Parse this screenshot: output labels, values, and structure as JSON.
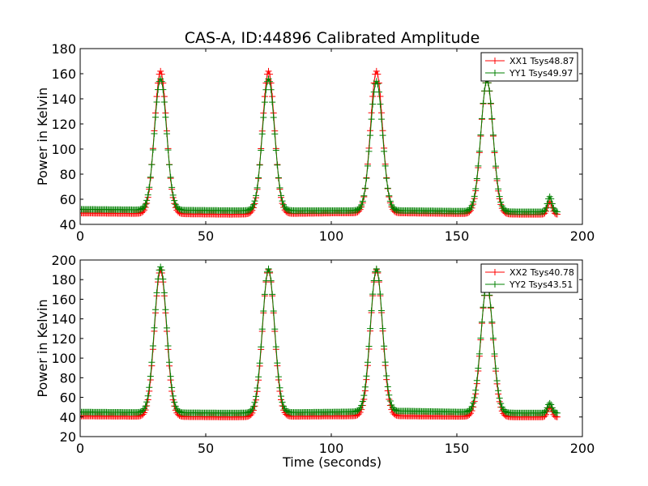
{
  "figure": {
    "title": "CAS-A, ID:44896 Calibrated Amplitude",
    "xlabel": "Time (seconds)",
    "ylabel": "Power in Kelvin",
    "colors": {
      "XX": "#ff0000",
      "YY": "#008000"
    }
  },
  "chart_data": [
    {
      "type": "line",
      "title": "CAS-A, ID:44896 Calibrated Amplitude",
      "xlabel": "",
      "ylabel": "Power in Kelvin",
      "xlim": [
        0,
        200
      ],
      "ylim": [
        40,
        180
      ],
      "xticks": [
        0,
        50,
        100,
        150,
        200
      ],
      "yticks": [
        40,
        60,
        80,
        100,
        120,
        140,
        160,
        180
      ],
      "legend_position": "top-right",
      "marker": "plus",
      "x_range": [
        0,
        190
      ],
      "series": [
        {
          "name": "XX1 Tsys48.87",
          "color": "#ff0000",
          "baselines": [
            [
              0,
              49
            ],
            [
              60,
              48
            ],
            [
              100,
              49
            ],
            [
              130,
              49
            ],
            [
              175,
              48
            ],
            [
              190,
              48
            ]
          ],
          "peaks": [
            {
              "center": 32,
              "height": 162,
              "width": 2.4
            },
            {
              "center": 75,
              "height": 162,
              "width": 2.4
            },
            {
              "center": 118,
              "height": 162,
              "width": 2.4
            },
            {
              "center": 162,
              "height": 155,
              "width": 2.4
            },
            {
              "center": 187,
              "height": 58,
              "width": 0.9
            }
          ]
        },
        {
          "name": "YY1 Tsys49.97",
          "color": "#008000",
          "baselines": [
            [
              0,
              52
            ],
            [
              60,
              51
            ],
            [
              100,
              51
            ],
            [
              130,
              51
            ],
            [
              175,
              50
            ],
            [
              190,
              50
            ]
          ],
          "peaks": [
            {
              "center": 32,
              "height": 156,
              "width": 2.4
            },
            {
              "center": 75,
              "height": 156,
              "width": 2.4
            },
            {
              "center": 118,
              "height": 154,
              "width": 2.4
            },
            {
              "center": 162,
              "height": 155,
              "width": 2.4
            },
            {
              "center": 187,
              "height": 62,
              "width": 0.9
            }
          ]
        }
      ]
    },
    {
      "type": "line",
      "title": "",
      "xlabel": "Time (seconds)",
      "ylabel": "Power in Kelvin",
      "xlim": [
        0,
        200
      ],
      "ylim": [
        20,
        200
      ],
      "xticks": [
        0,
        50,
        100,
        150,
        200
      ],
      "yticks": [
        20,
        40,
        60,
        80,
        100,
        120,
        140,
        160,
        180,
        200
      ],
      "legend_position": "top-right",
      "marker": "plus",
      "x_range": [
        0,
        190
      ],
      "series": [
        {
          "name": "XX2 Tsys40.78",
          "color": "#ff0000",
          "baselines": [
            [
              0,
              41
            ],
            [
              60,
              40
            ],
            [
              100,
              41
            ],
            [
              130,
              41
            ],
            [
              175,
              40
            ],
            [
              190,
              40
            ]
          ],
          "peaks": [
            {
              "center": 32,
              "height": 190,
              "width": 2.4
            },
            {
              "center": 75,
              "height": 190,
              "width": 2.4
            },
            {
              "center": 118,
              "height": 190,
              "width": 2.4
            },
            {
              "center": 162,
              "height": 175,
              "width": 2.4
            },
            {
              "center": 187,
              "height": 50,
              "width": 0.9
            }
          ]
        },
        {
          "name": "YY2 Tsys43.51",
          "color": "#008000",
          "baselines": [
            [
              0,
              45
            ],
            [
              60,
              44
            ],
            [
              100,
              45
            ],
            [
              130,
              46
            ],
            [
              175,
              44
            ],
            [
              190,
              44
            ]
          ],
          "peaks": [
            {
              "center": 32,
              "height": 193,
              "width": 2.4
            },
            {
              "center": 75,
              "height": 191,
              "width": 2.4
            },
            {
              "center": 118,
              "height": 191,
              "width": 2.4
            },
            {
              "center": 162,
              "height": 175,
              "width": 2.4
            },
            {
              "center": 187,
              "height": 54,
              "width": 0.9
            }
          ]
        }
      ]
    }
  ]
}
